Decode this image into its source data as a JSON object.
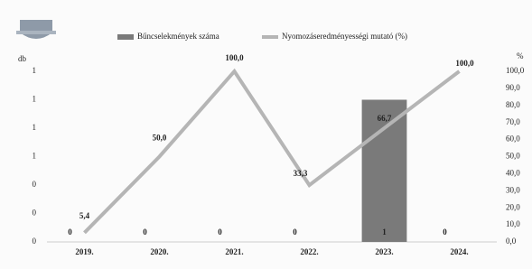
{
  "chart_data": {
    "type": "bar_line",
    "categories": [
      "2019.",
      "2020.",
      "2021.",
      "2022.",
      "2023.",
      "2024."
    ],
    "series": [
      {
        "name": "Bűncselekmények száma",
        "type": "bar",
        "color": "#7a7a7a",
        "values": [
          0,
          0,
          0,
          0,
          1,
          0
        ],
        "value_labels": [
          "0",
          "0",
          "0",
          "0",
          "1",
          "0"
        ]
      },
      {
        "name": "Nyomozáseredményességi mutató (%)",
        "type": "line",
        "axis": "y2",
        "color": "#b5b5b5",
        "values": [
          5.4,
          50,
          100,
          33.3,
          66.7,
          100
        ],
        "value_labels": [
          "5,4",
          "50,0",
          "100,0",
          "33,3",
          "66,7",
          "100,0"
        ]
      }
    ],
    "ylabel": "db",
    "y2label": "%",
    "ylim": [
      0,
      1.2
    ],
    "yticks": [
      {
        "value": 0,
        "label": "0"
      },
      {
        "value": 0.2,
        "label": "0"
      },
      {
        "value": 0.4,
        "label": "0"
      },
      {
        "value": 0.6,
        "label": "1"
      },
      {
        "value": 0.8,
        "label": "1"
      },
      {
        "value": 1,
        "label": "1"
      },
      {
        "value": 1.2,
        "label": "1"
      }
    ],
    "y2lim": [
      0,
      100
    ],
    "y2ticks": [
      {
        "value": 0,
        "label": "0,0"
      },
      {
        "value": 10,
        "label": "10,0"
      },
      {
        "value": 20,
        "label": "20,0"
      },
      {
        "value": 30,
        "label": "30,0"
      },
      {
        "value": 40,
        "label": "40,0"
      },
      {
        "value": 50,
        "label": "50,0"
      },
      {
        "value": 60,
        "label": "60,0"
      },
      {
        "value": 70,
        "label": "70,0"
      },
      {
        "value": 80,
        "label": "80,0"
      },
      {
        "value": 90,
        "label": "90,0"
      },
      {
        "value": 100,
        "label": "100,0"
      }
    ],
    "legend": "top"
  }
}
